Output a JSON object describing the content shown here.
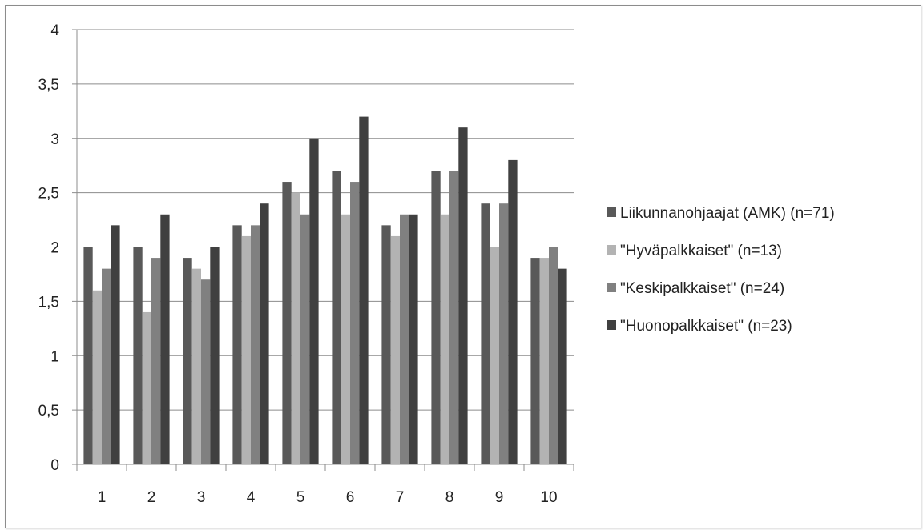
{
  "chart_data": {
    "type": "bar",
    "categories": [
      "1",
      "2",
      "3",
      "4",
      "5",
      "6",
      "7",
      "8",
      "9",
      "10"
    ],
    "series": [
      {
        "name": "Liikunnanohjaajat (AMK) (n=71)",
        "values": [
          2.0,
          2.0,
          1.9,
          2.2,
          2.6,
          2.7,
          2.2,
          2.7,
          2.4,
          1.9
        ],
        "color": "#595959"
      },
      {
        "name": "\"Hyväpalkkaiset\" (n=13)",
        "values": [
          1.6,
          1.4,
          1.8,
          2.1,
          2.5,
          2.3,
          2.1,
          2.3,
          2.0,
          1.9
        ],
        "color": "#b3b3b3"
      },
      {
        "name": "\"Keskipalkkaiset\" (n=24)",
        "values": [
          1.8,
          1.9,
          1.7,
          2.2,
          2.3,
          2.6,
          2.3,
          2.7,
          2.4,
          2.0
        ],
        "color": "#808080"
      },
      {
        "name": "\"Huonopalkkaiset\" (n=23)",
        "values": [
          2.2,
          2.3,
          2.0,
          2.4,
          3.0,
          3.2,
          2.3,
          3.1,
          2.8,
          1.8
        ],
        "color": "#404040"
      }
    ],
    "yticks": [
      "0",
      "0,5",
      "1",
      "1,5",
      "2",
      "2,5",
      "3",
      "3,5",
      "4"
    ],
    "ylim": [
      0,
      4
    ],
    "title": "",
    "xlabel": "",
    "ylabel": "",
    "grid": true,
    "legend_position": "right"
  }
}
